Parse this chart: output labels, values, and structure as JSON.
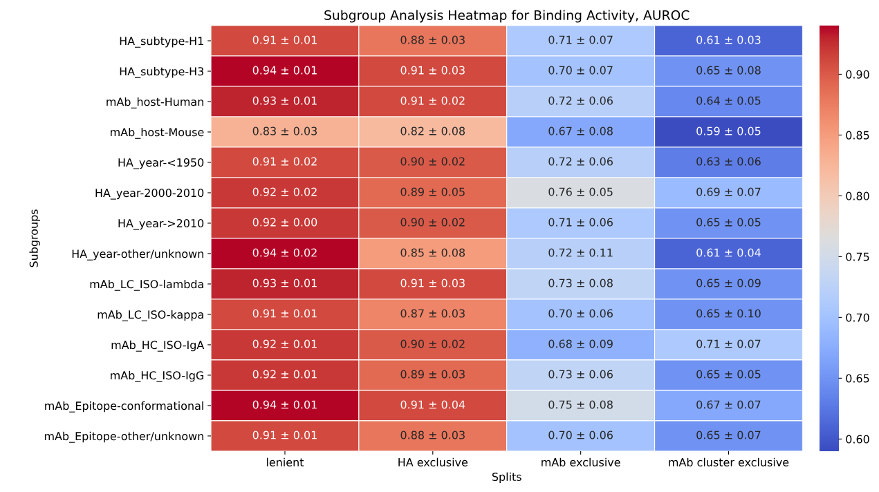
{
  "chart_data": {
    "type": "heatmap",
    "title": "Subgroup Analysis Heatmap for Binding Activity, AUROC",
    "xlabel": "Splits",
    "ylabel": "Subgroups",
    "categories": [
      "lenient",
      "HA exclusive",
      "mAb exclusive",
      "mAb cluster exclusive"
    ],
    "y_categories": [
      "HA_subtype-H1",
      "HA_subtype-H3",
      "mAb_host-Human",
      "mAb_host-Mouse",
      "HA_year-<1950",
      "HA_year-2000-2010",
      "HA_year->2010",
      "HA_year-other/unknown",
      "mAb_LC_ISO-lambda",
      "mAb_LC_ISO-kappa",
      "mAb_HC_ISO-IgA",
      "mAb_HC_ISO-IgG",
      "mAb_Epitope-conformational",
      "mAb_Epitope-other/unknown"
    ],
    "cells": [
      [
        0.91,
        0.88,
        0.71,
        0.61
      ],
      [
        0.94,
        0.91,
        0.7,
        0.65
      ],
      [
        0.93,
        0.91,
        0.72,
        0.64
      ],
      [
        0.83,
        0.82,
        0.67,
        0.59
      ],
      [
        0.91,
        0.9,
        0.72,
        0.63
      ],
      [
        0.92,
        0.89,
        0.76,
        0.69
      ],
      [
        0.92,
        0.9,
        0.71,
        0.65
      ],
      [
        0.94,
        0.85,
        0.72,
        0.61
      ],
      [
        0.93,
        0.91,
        0.73,
        0.65
      ],
      [
        0.91,
        0.87,
        0.7,
        0.65
      ],
      [
        0.92,
        0.9,
        0.68,
        0.71
      ],
      [
        0.92,
        0.89,
        0.73,
        0.65
      ],
      [
        0.94,
        0.91,
        0.75,
        0.67
      ],
      [
        0.91,
        0.88,
        0.7,
        0.65
      ]
    ],
    "cell_labels": [
      [
        "0.91 ± 0.01",
        "0.88 ± 0.03",
        "0.71 ± 0.07",
        "0.61 ± 0.03"
      ],
      [
        "0.94 ± 0.01",
        "0.91 ± 0.03",
        "0.70 ± 0.07",
        "0.65 ± 0.08"
      ],
      [
        "0.93 ± 0.01",
        "0.91 ± 0.02",
        "0.72 ± 0.06",
        "0.64 ± 0.05"
      ],
      [
        "0.83 ± 0.03",
        "0.82 ± 0.08",
        "0.67 ± 0.08",
        "0.59 ± 0.05"
      ],
      [
        "0.91 ± 0.02",
        "0.90 ± 0.02",
        "0.72 ± 0.06",
        "0.63 ± 0.06"
      ],
      [
        "0.92 ± 0.02",
        "0.89 ± 0.05",
        "0.76 ± 0.05",
        "0.69 ± 0.07"
      ],
      [
        "0.92 ± 0.00",
        "0.90 ± 0.02",
        "0.71 ± 0.06",
        "0.65 ± 0.05"
      ],
      [
        "0.94 ± 0.02",
        "0.85 ± 0.08",
        "0.72 ± 0.11",
        "0.61 ± 0.04"
      ],
      [
        "0.93 ± 0.01",
        "0.91 ± 0.03",
        "0.73 ± 0.08",
        "0.65 ± 0.09"
      ],
      [
        "0.91 ± 0.01",
        "0.87 ± 0.03",
        "0.70 ± 0.06",
        "0.65 ± 0.10"
      ],
      [
        "0.92 ± 0.01",
        "0.90 ± 0.02",
        "0.68 ± 0.09",
        "0.71 ± 0.07"
      ],
      [
        "0.92 ± 0.01",
        "0.89 ± 0.03",
        "0.73 ± 0.06",
        "0.65 ± 0.05"
      ],
      [
        "0.94 ± 0.01",
        "0.91 ± 0.04",
        "0.75 ± 0.08",
        "0.67 ± 0.07"
      ],
      [
        "0.91 ± 0.01",
        "0.88 ± 0.03",
        "0.70 ± 0.06",
        "0.65 ± 0.07"
      ]
    ],
    "clim": [
      0.59,
      0.94
    ],
    "cticks": [
      {
        "value": 0.6,
        "label": "0.60"
      },
      {
        "value": 0.65,
        "label": "0.65"
      },
      {
        "value": 0.7,
        "label": "0.70"
      },
      {
        "value": 0.75,
        "label": "0.75"
      },
      {
        "value": 0.8,
        "label": "0.80"
      },
      {
        "value": 0.85,
        "label": "0.85"
      },
      {
        "value": 0.9,
        "label": "0.90"
      }
    ]
  }
}
